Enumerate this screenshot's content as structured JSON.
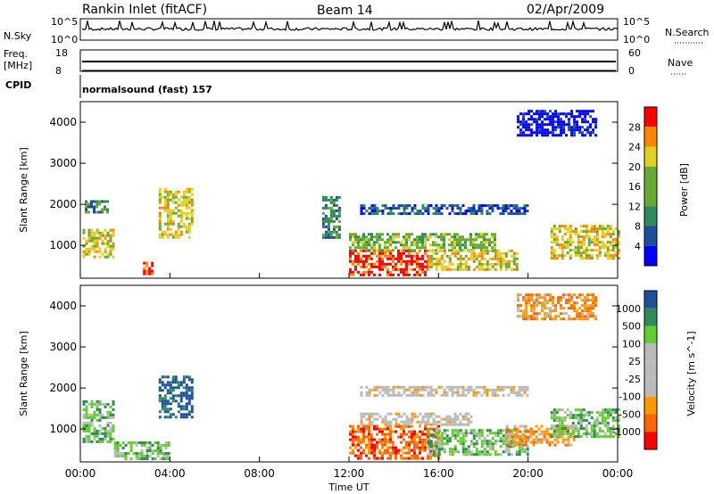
{
  "header": {
    "station": "Rankin Inlet (fitACF)",
    "beam": "Beam 14",
    "date": "02/Apr/2009"
  },
  "strips": {
    "nsky_label": "N.Sky",
    "nsky_top": "10^5",
    "nsky_bottom": "10^0",
    "nsearch_label": "N.Search",
    "nsearch_top": "10^5",
    "nsearch_bottom": "10^0",
    "freq_label": "Freq.",
    "freq_unit": "[MHz]",
    "freq_top": "18",
    "freq_bottom": "8",
    "nave_label": "Nave",
    "nave_top": "60",
    "nave_bottom": "0",
    "cpid_label": "CPID",
    "cpid_value": "normalsound (fast) 157"
  },
  "chart_data": [
    {
      "type": "heatmap",
      "panel": "power",
      "ylabel": "Slant Range [km]",
      "colorbar_label": "Power [dB]",
      "ylim": [
        200,
        4500
      ],
      "xlim": [
        0,
        24
      ],
      "yticks": [
        "1000",
        "2000",
        "3000",
        "4000"
      ],
      "colorbar_ticks": [
        "28",
        "24",
        "20",
        "16",
        "12",
        "8",
        "4"
      ],
      "colorscale": [
        "#0000ff",
        "#1c4f9c",
        "#2e8b57",
        "#66aa33",
        "#e0d020",
        "#ff8800",
        "#ff0000"
      ],
      "regions": [
        {
          "t0": 0.1,
          "t1": 1.5,
          "r0": 700,
          "r1": 1400,
          "level": 4
        },
        {
          "t0": 0.2,
          "t1": 1.2,
          "r0": 1800,
          "r1": 2100,
          "level": 2
        },
        {
          "t0": 2.8,
          "t1": 3.2,
          "r0": 250,
          "r1": 600,
          "level": 6
        },
        {
          "t0": 3.5,
          "t1": 5.0,
          "r0": 1200,
          "r1": 2400,
          "level": 4
        },
        {
          "t0": 10.8,
          "t1": 11.6,
          "r0": 1200,
          "r1": 2200,
          "level": 2
        },
        {
          "t0": 12.0,
          "t1": 15.5,
          "r0": 300,
          "r1": 900,
          "level": 6
        },
        {
          "t0": 12.0,
          "t1": 18.5,
          "r0": 900,
          "r1": 1300,
          "level": 3
        },
        {
          "t0": 15.5,
          "t1": 19.5,
          "r0": 400,
          "r1": 900,
          "level": 4
        },
        {
          "t0": 12.5,
          "t1": 20.0,
          "r0": 1800,
          "r1": 2000,
          "level": 1
        },
        {
          "t0": 21.0,
          "t1": 24.0,
          "r0": 700,
          "r1": 1500,
          "level": 4
        },
        {
          "t0": 19.5,
          "t1": 23.0,
          "r0": 3700,
          "r1": 4300,
          "level": 0
        }
      ]
    },
    {
      "type": "heatmap",
      "panel": "velocity",
      "ylabel": "Slant Range [km]",
      "colorbar_label": "Velocity [m s^-1]",
      "ylim": [
        200,
        4500
      ],
      "xlim": [
        0,
        24
      ],
      "yticks": [
        "1000",
        "2000",
        "3000",
        "4000"
      ],
      "colorbar_ticks": [
        "1000",
        "500",
        "100",
        "25",
        "-25",
        "-100",
        "-500",
        "-1000"
      ],
      "colorscale": [
        "#ff0000",
        "#ff6600",
        "#ff9900",
        "#bbbbbb",
        "#bbbbbb",
        "#66cc33",
        "#2e8b57",
        "#1c4f9c"
      ],
      "regions": [
        {
          "t0": 0.1,
          "t1": 1.5,
          "r0": 700,
          "r1": 1700,
          "level": 5
        },
        {
          "t0": 3.5,
          "t1": 5.0,
          "r0": 1300,
          "r1": 2300,
          "level": 7
        },
        {
          "t0": 1.5,
          "t1": 4.0,
          "r0": 300,
          "r1": 700,
          "level": 5
        },
        {
          "t0": 12.0,
          "t1": 16.0,
          "r0": 300,
          "r1": 1100,
          "level": 1
        },
        {
          "t0": 12.5,
          "t1": 17.5,
          "r0": 1100,
          "r1": 1400,
          "level": 3
        },
        {
          "t0": 15.5,
          "t1": 20.0,
          "r0": 400,
          "r1": 1000,
          "level": 5
        },
        {
          "t0": 19.0,
          "t1": 22.0,
          "r0": 600,
          "r1": 1100,
          "level": 2
        },
        {
          "t0": 21.0,
          "t1": 24.0,
          "r0": 800,
          "r1": 1500,
          "level": 5
        },
        {
          "t0": 12.5,
          "t1": 20.0,
          "r0": 1850,
          "r1": 2050,
          "level": 3
        },
        {
          "t0": 19.5,
          "t1": 23.0,
          "r0": 3700,
          "r1": 4300,
          "level": 2
        }
      ]
    }
  ],
  "xaxis": {
    "label": "Time UT",
    "ticks": [
      "00:00",
      "04:00",
      "08:00",
      "12:00",
      "16:00",
      "20:00",
      "00:00"
    ]
  }
}
